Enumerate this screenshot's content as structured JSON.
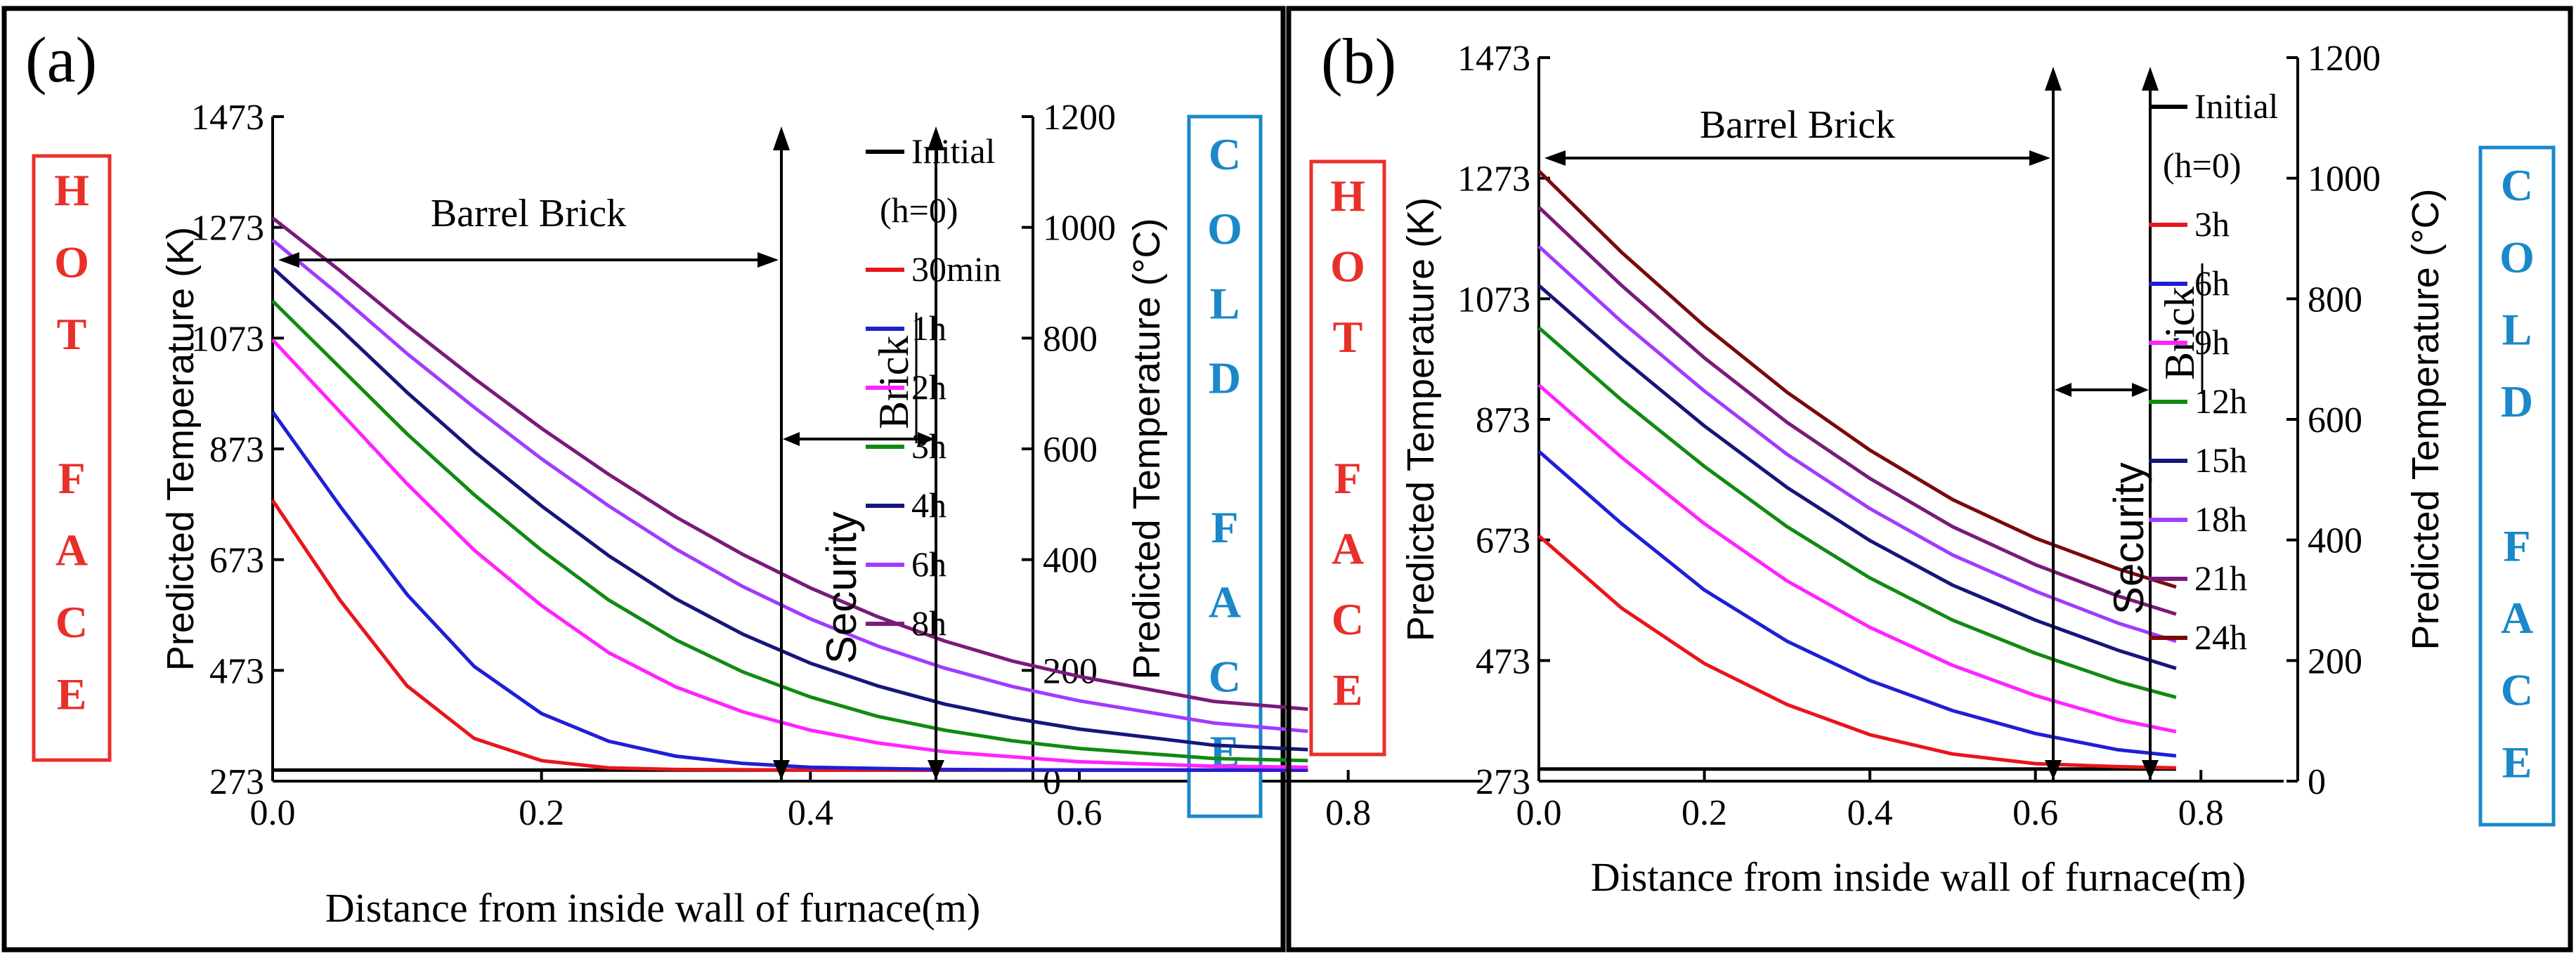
{
  "panels": [
    {
      "id": "a",
      "label": "(a)",
      "hot_face": "HOT FACE",
      "cold_face": "COLD FACE"
    },
    {
      "id": "b",
      "label": "(b)",
      "hot_face": "HOT FACE",
      "cold_face": "COLD FACE"
    }
  ],
  "colors": {
    "hot_face": "#e8302a",
    "cold_face": "#1a88c9",
    "Initial": "#000000",
    "30min": "#e8151b",
    "1h": "#1f1fd6",
    "2h": "#ff22ff",
    "3h_a": "#118a11",
    "4h": "#16167a",
    "6h": "#a13bff",
    "8h": "#7a1a7a",
    "3h_b": "#e8151b",
    "6h_b": "#1f1fd6",
    "9h": "#ff22ff",
    "12h": "#118a11",
    "15h": "#16167a",
    "18h": "#a13bff",
    "21h": "#7a1a7a",
    "24h": "#7a0a0a"
  },
  "chart_data": [
    {
      "type": "line",
      "panel": "a",
      "xlabel": "Distance from inside wall of furnace(m)",
      "ylabel": "Predicted Temperature (K)",
      "ylabel_right": "Predicted Temperature (°C)",
      "xlim": [
        0,
        0.9
      ],
      "ylim": [
        273,
        1473
      ],
      "x_ticks": [
        "0.0",
        "0.2",
        "0.4",
        "0.6",
        "0.8"
      ],
      "x_tick_values": [
        0,
        0.2,
        0.4,
        0.6,
        0.8
      ],
      "y_ticks": [
        "273",
        "473",
        "673",
        "873",
        "1073",
        "1273",
        "1473"
      ],
      "y_tick_values": [
        273,
        473,
        673,
        873,
        1073,
        1273,
        1473
      ],
      "y_ticks_right": [
        "0",
        "200",
        "400",
        "600",
        "800",
        "1000",
        "1200"
      ],
      "y_tick_right_values": [
        0,
        200,
        400,
        600,
        800,
        1000,
        1200
      ],
      "annotations": {
        "barrel": "Barrel Brick",
        "barrel_end": 0.62,
        "security": "Security",
        "brick": "Brick",
        "security_end": 0.72
      },
      "legend": [
        "Initial",
        "(h=0)",
        "30min",
        "1h",
        "2h",
        "3h",
        "4h",
        "6h",
        "8h"
      ],
      "series": [
        {
          "name": "Initial",
          "color": "#000000",
          "x": [
            0,
            0.77
          ],
          "y": [
            293,
            293
          ]
        },
        {
          "name": "30min",
          "color": "#e8151b",
          "x": [
            0,
            0.05,
            0.1,
            0.15,
            0.2,
            0.25,
            0.3,
            0.4,
            0.5,
            0.6,
            0.7,
            0.77
          ],
          "y": [
            780,
            600,
            445,
            350,
            310,
            297,
            294,
            293,
            293,
            293,
            293,
            293
          ]
        },
        {
          "name": "1h",
          "color": "#1f1fd6",
          "x": [
            0,
            0.05,
            0.1,
            0.15,
            0.2,
            0.25,
            0.3,
            0.35,
            0.4,
            0.5,
            0.6,
            0.7,
            0.77
          ],
          "y": [
            940,
            770,
            610,
            480,
            395,
            345,
            318,
            305,
            298,
            294,
            293,
            293,
            293
          ]
        },
        {
          "name": "2h",
          "color": "#ff22ff",
          "x": [
            0,
            0.05,
            0.1,
            0.15,
            0.2,
            0.25,
            0.3,
            0.35,
            0.4,
            0.45,
            0.5,
            0.6,
            0.7,
            0.77
          ],
          "y": [
            1070,
            940,
            810,
            690,
            590,
            505,
            443,
            398,
            365,
            342,
            326,
            308,
            300,
            298
          ]
        },
        {
          "name": "3h",
          "color": "#118a11",
          "x": [
            0,
            0.05,
            0.1,
            0.15,
            0.2,
            0.25,
            0.3,
            0.35,
            0.4,
            0.45,
            0.5,
            0.55,
            0.6,
            0.7,
            0.77
          ],
          "y": [
            1140,
            1020,
            900,
            790,
            690,
            600,
            528,
            470,
            425,
            390,
            365,
            346,
            332,
            314,
            310
          ]
        },
        {
          "name": "4h",
          "color": "#16167a",
          "x": [
            0,
            0.05,
            0.1,
            0.15,
            0.2,
            0.25,
            0.3,
            0.35,
            0.4,
            0.45,
            0.5,
            0.55,
            0.6,
            0.7,
            0.77
          ],
          "y": [
            1200,
            1090,
            975,
            868,
            770,
            680,
            602,
            538,
            486,
            445,
            412,
            387,
            367,
            338,
            330
          ]
        },
        {
          "name": "6h",
          "color": "#a13bff",
          "x": [
            0,
            0.05,
            0.1,
            0.15,
            0.2,
            0.25,
            0.3,
            0.35,
            0.4,
            0.45,
            0.5,
            0.55,
            0.6,
            0.7,
            0.77
          ],
          "y": [
            1250,
            1150,
            1045,
            948,
            855,
            770,
            692,
            624,
            566,
            517,
            477,
            444,
            418,
            378,
            363
          ]
        },
        {
          "name": "8h",
          "color": "#7a1a7a",
          "x": [
            0,
            0.05,
            0.1,
            0.15,
            0.2,
            0.25,
            0.3,
            0.35,
            0.4,
            0.45,
            0.5,
            0.55,
            0.6,
            0.7,
            0.77
          ],
          "y": [
            1290,
            1195,
            1095,
            1000,
            910,
            827,
            750,
            682,
            622,
            570,
            526,
            490,
            462,
            417,
            403
          ]
        }
      ]
    },
    {
      "type": "line",
      "panel": "b",
      "xlabel": "Distance from inside wall of furnace(m)",
      "ylabel": "Predicted Temperature (K)",
      "ylabel_right": "Predicted Temperature (°C)",
      "xlim": [
        0,
        0.9
      ],
      "ylim": [
        273,
        1473
      ],
      "x_ticks": [
        "0.0",
        "0.2",
        "0.4",
        "0.6",
        "0.8"
      ],
      "x_tick_values": [
        0,
        0.2,
        0.4,
        0.6,
        0.8
      ],
      "y_ticks": [
        "273",
        "473",
        "673",
        "873",
        "1073",
        "1273",
        "1473"
      ],
      "y_tick_values": [
        273,
        473,
        673,
        873,
        1073,
        1273,
        1473
      ],
      "y_ticks_right": [
        "0",
        "200",
        "400",
        "600",
        "800",
        "1000",
        "1200"
      ],
      "y_tick_right_values": [
        0,
        200,
        400,
        600,
        800,
        1000,
        1200
      ],
      "annotations": {
        "barrel": "Barrel Brick",
        "barrel_end": 0.62,
        "security": "Security",
        "brick": "Brick",
        "security_end": 0.72
      },
      "legend": [
        "Initial",
        "(h=0)",
        "3h",
        "6h",
        "9h",
        "12h",
        "15h",
        "18h",
        "21h",
        "24h"
      ],
      "series": [
        {
          "name": "Initial",
          "color": "#000000",
          "x": [
            0,
            0.77
          ],
          "y": [
            293,
            293
          ]
        },
        {
          "name": "3h",
          "color": "#e8151b",
          "x": [
            0,
            0.1,
            0.2,
            0.3,
            0.4,
            0.5,
            0.6,
            0.7,
            0.77
          ],
          "y": [
            680,
            560,
            468,
            400,
            350,
            318,
            302,
            297,
            295
          ]
        },
        {
          "name": "6h",
          "color": "#1f1fd6",
          "x": [
            0,
            0.1,
            0.2,
            0.3,
            0.4,
            0.5,
            0.6,
            0.7,
            0.77
          ],
          "y": [
            820,
            700,
            590,
            505,
            440,
            390,
            352,
            325,
            315
          ]
        },
        {
          "name": "9h",
          "color": "#ff22ff",
          "x": [
            0,
            0.1,
            0.2,
            0.3,
            0.4,
            0.5,
            0.6,
            0.7,
            0.77
          ],
          "y": [
            930,
            810,
            700,
            605,
            528,
            465,
            415,
            375,
            355
          ]
        },
        {
          "name": "12h",
          "color": "#118a11",
          "x": [
            0,
            0.1,
            0.2,
            0.3,
            0.4,
            0.5,
            0.6,
            0.7,
            0.77
          ],
          "y": [
            1025,
            905,
            795,
            695,
            610,
            540,
            485,
            438,
            412
          ]
        },
        {
          "name": "15h",
          "color": "#16167a",
          "x": [
            0,
            0.1,
            0.2,
            0.3,
            0.4,
            0.5,
            0.6,
            0.7,
            0.77
          ],
          "y": [
            1095,
            975,
            862,
            760,
            672,
            598,
            540,
            490,
            460
          ]
        },
        {
          "name": "18h",
          "color": "#a13bff",
          "x": [
            0,
            0.1,
            0.2,
            0.3,
            0.4,
            0.5,
            0.6,
            0.7,
            0.77
          ],
          "y": [
            1160,
            1035,
            920,
            815,
            725,
            648,
            588,
            535,
            505
          ]
        },
        {
          "name": "21h",
          "color": "#7a1a7a",
          "x": [
            0,
            0.1,
            0.2,
            0.3,
            0.4,
            0.5,
            0.6,
            0.7,
            0.77
          ],
          "y": [
            1225,
            1095,
            975,
            868,
            775,
            695,
            632,
            580,
            550
          ]
        },
        {
          "name": "24h",
          "color": "#7a0a0a",
          "x": [
            0,
            0.1,
            0.2,
            0.3,
            0.4,
            0.5,
            0.6,
            0.7,
            0.77
          ],
          "y": [
            1285,
            1150,
            1028,
            918,
            822,
            740,
            676,
            625,
            595
          ]
        }
      ]
    }
  ]
}
